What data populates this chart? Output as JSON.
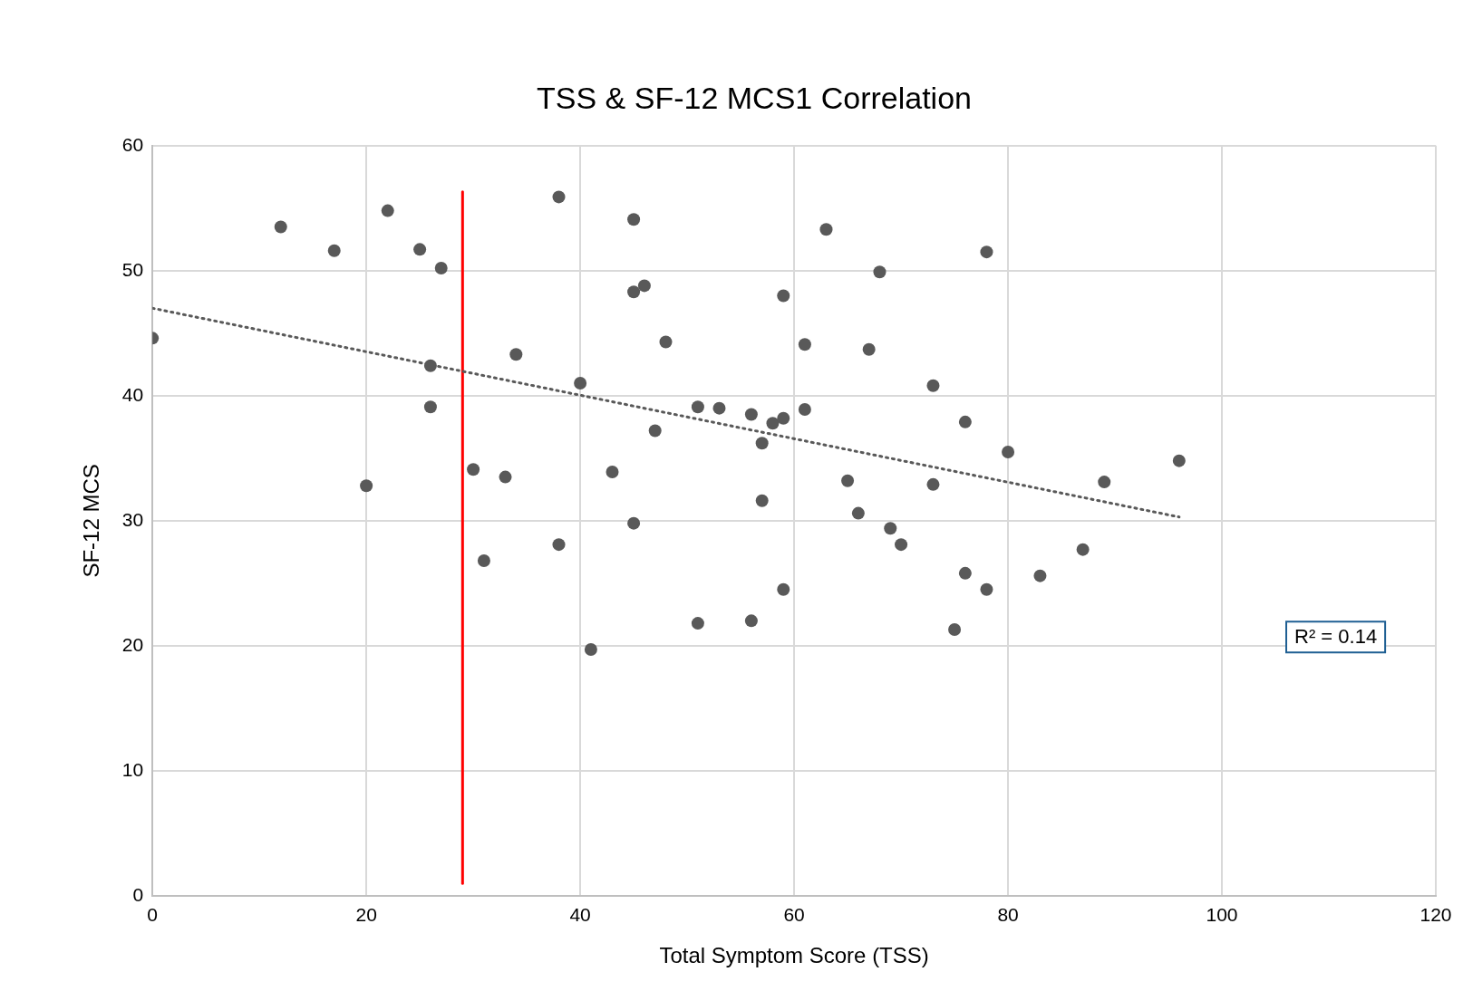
{
  "chart_data": {
    "type": "scatter",
    "title": "TSS & SF-12 MCS1 Correlation",
    "xlabel": "Total Symptom Score (TSS)",
    "ylabel": "SF-12 MCS",
    "xlim": [
      0,
      120
    ],
    "xticks": [
      0,
      20,
      40,
      60,
      80,
      100,
      120
    ],
    "ylim": [
      0,
      60
    ],
    "yticks": [
      0,
      10,
      20,
      30,
      40,
      50,
      60
    ],
    "grid": true,
    "legend": false,
    "marker": "circle",
    "annotations": [
      "R² = 0.14"
    ],
    "series": [
      {
        "color": "#595959",
        "x": [
          0,
          12,
          17,
          20,
          22,
          25,
          26,
          26,
          27,
          30,
          31,
          33,
          34,
          38,
          38,
          40,
          41,
          43,
          45,
          45,
          45,
          46,
          47,
          48,
          51,
          51,
          53,
          56,
          56,
          57,
          57,
          58,
          59,
          59,
          59,
          61,
          61,
          63,
          65,
          66,
          67,
          68,
          69,
          70,
          73,
          73,
          75,
          76,
          76,
          78,
          78,
          80,
          83,
          87,
          89,
          96
        ],
        "values": [
          44.6,
          53.5,
          51.6,
          32.8,
          54.8,
          51.7,
          42.4,
          39.1,
          50.2,
          34.1,
          26.8,
          33.5,
          43.3,
          55.9,
          28.1,
          41,
          19.7,
          33.9,
          54.1,
          48.3,
          29.8,
          48.8,
          37.2,
          44.3,
          39.1,
          21.8,
          39,
          38.5,
          22,
          36.2,
          31.6,
          37.8,
          48,
          38.2,
          24.5,
          44.1,
          38.9,
          53.3,
          33.2,
          30.6,
          43.7,
          49.9,
          29.4,
          28.1,
          40.8,
          32.9,
          21.3,
          37.9,
          25.8,
          51.5,
          24.5,
          35.5,
          25.6,
          27.7,
          33.1,
          34.8
        ]
      },
      {
        "type": "line",
        "color": "#595959",
        "line_style": "dotted",
        "marker": "none",
        "x": [
          0,
          96
        ],
        "values": [
          47,
          30.3
        ]
      },
      {
        "type": "line",
        "color": "#ff0000",
        "line_style": "solid",
        "marker": "none",
        "x": [
          29,
          29
        ],
        "values": [
          1,
          56.3
        ]
      }
    ]
  }
}
